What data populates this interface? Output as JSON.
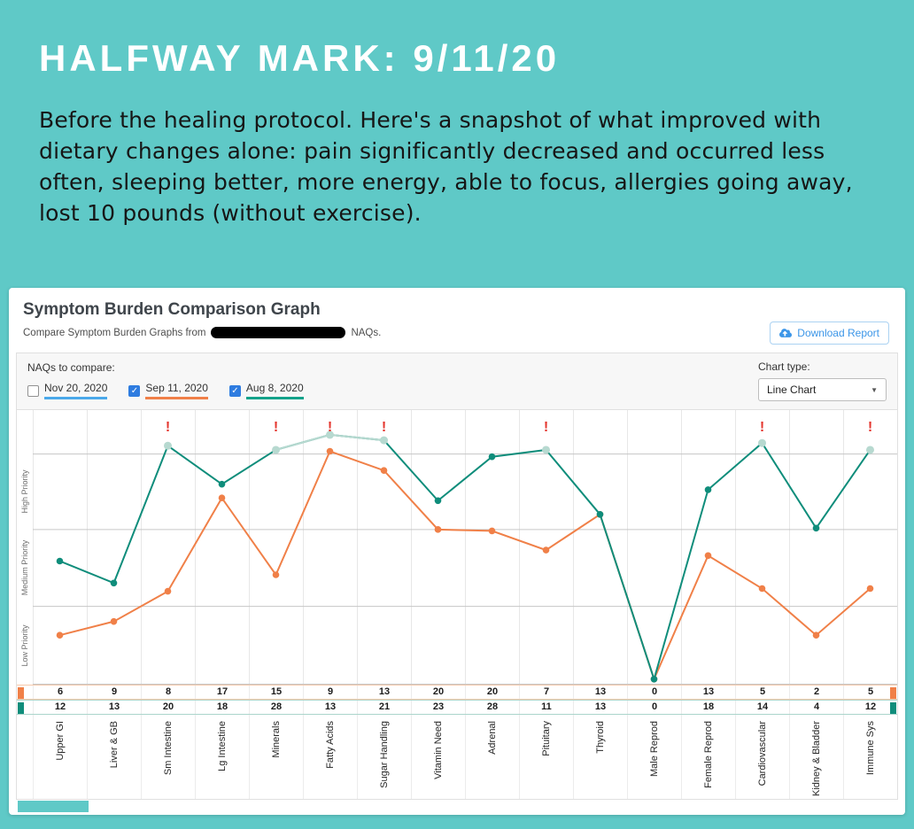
{
  "page": {
    "heading": "HALFWAY MARK: 9/11/20",
    "body_text": "Before the healing protocol. Here's a snapshot of what improved with dietary changes alone: pain significantly decreased and occurred less often, sleeping better, more energy, able to focus, allergies going away, lost 10 pounds (without exercise).",
    "background_color": "#5fc9c7"
  },
  "card": {
    "title": "Symptom Burden Comparison Graph",
    "subtitle_prefix": "Compare Symptom Burden Graphs from",
    "subtitle_suffix": "NAQs.",
    "download_button": "Download Report",
    "naqs_label": "NAQs to compare:",
    "chart_type_label": "Chart type:",
    "chart_type_value": "Line Chart",
    "checkboxes": [
      {
        "label": "Nov 20, 2020",
        "checked": false,
        "color": "#4aa8ea"
      },
      {
        "label": "Sep 11, 2020",
        "checked": true,
        "color": "#f08048"
      },
      {
        "label": "Aug 8, 2020",
        "checked": true,
        "color": "#13a28a"
      }
    ]
  },
  "chart_data": {
    "type": "line",
    "title": "Symptom Burden Comparison Graph",
    "categories": [
      "Upper GI",
      "Liver & GB",
      "Sm Intestine",
      "Lg Intestine",
      "Minerals",
      "Fatty Acids",
      "Sugar Handling",
      "Vitamin Need",
      "Adrenal",
      "Pituitary",
      "Thyroid",
      "Male Reprod",
      "Female Reprod",
      "Cardiovascular",
      "Kidney & Bladder",
      "Immune Sys"
    ],
    "priority_bands": [
      "High Priority",
      "Medium Priority",
      "Low Priority"
    ],
    "band_fractions": {
      "high": 0.84,
      "medium": 0.565,
      "low": 0.285
    },
    "alert_columns": [
      2,
      4,
      5,
      6,
      9,
      13,
      15
    ],
    "alert_symbol": "!",
    "alert_color": "#e4372f",
    "series": [
      {
        "name": "Sep 11, 2020",
        "color": "#f08048",
        "row_border": "#f6c9ab",
        "values": [
          6,
          9,
          8,
          17,
          15,
          9,
          13,
          20,
          20,
          7,
          13,
          0,
          13,
          5,
          2,
          5
        ],
        "fractions": [
          0.18,
          0.23,
          0.34,
          0.68,
          0.4,
          0.85,
          0.78,
          0.565,
          0.56,
          0.49,
          0.62,
          0.02,
          0.47,
          0.35,
          0.18,
          0.35
        ]
      },
      {
        "name": "Aug 8, 2020",
        "color": "#0f8d7b",
        "light_color": "#b7d9d0",
        "row_border": "#abd5cb",
        "values": [
          12,
          13,
          20,
          18,
          28,
          13,
          21,
          23,
          28,
          11,
          13,
          0,
          18,
          14,
          4,
          12
        ],
        "fractions": [
          0.45,
          0.37,
          0.87,
          0.73,
          0.855,
          0.91,
          0.89,
          0.67,
          0.83,
          0.855,
          0.62,
          0.02,
          0.71,
          0.88,
          0.57,
          0.855
        ],
        "capped": [
          false,
          false,
          true,
          false,
          true,
          true,
          true,
          false,
          false,
          true,
          false,
          false,
          false,
          true,
          false,
          true
        ]
      }
    ]
  }
}
